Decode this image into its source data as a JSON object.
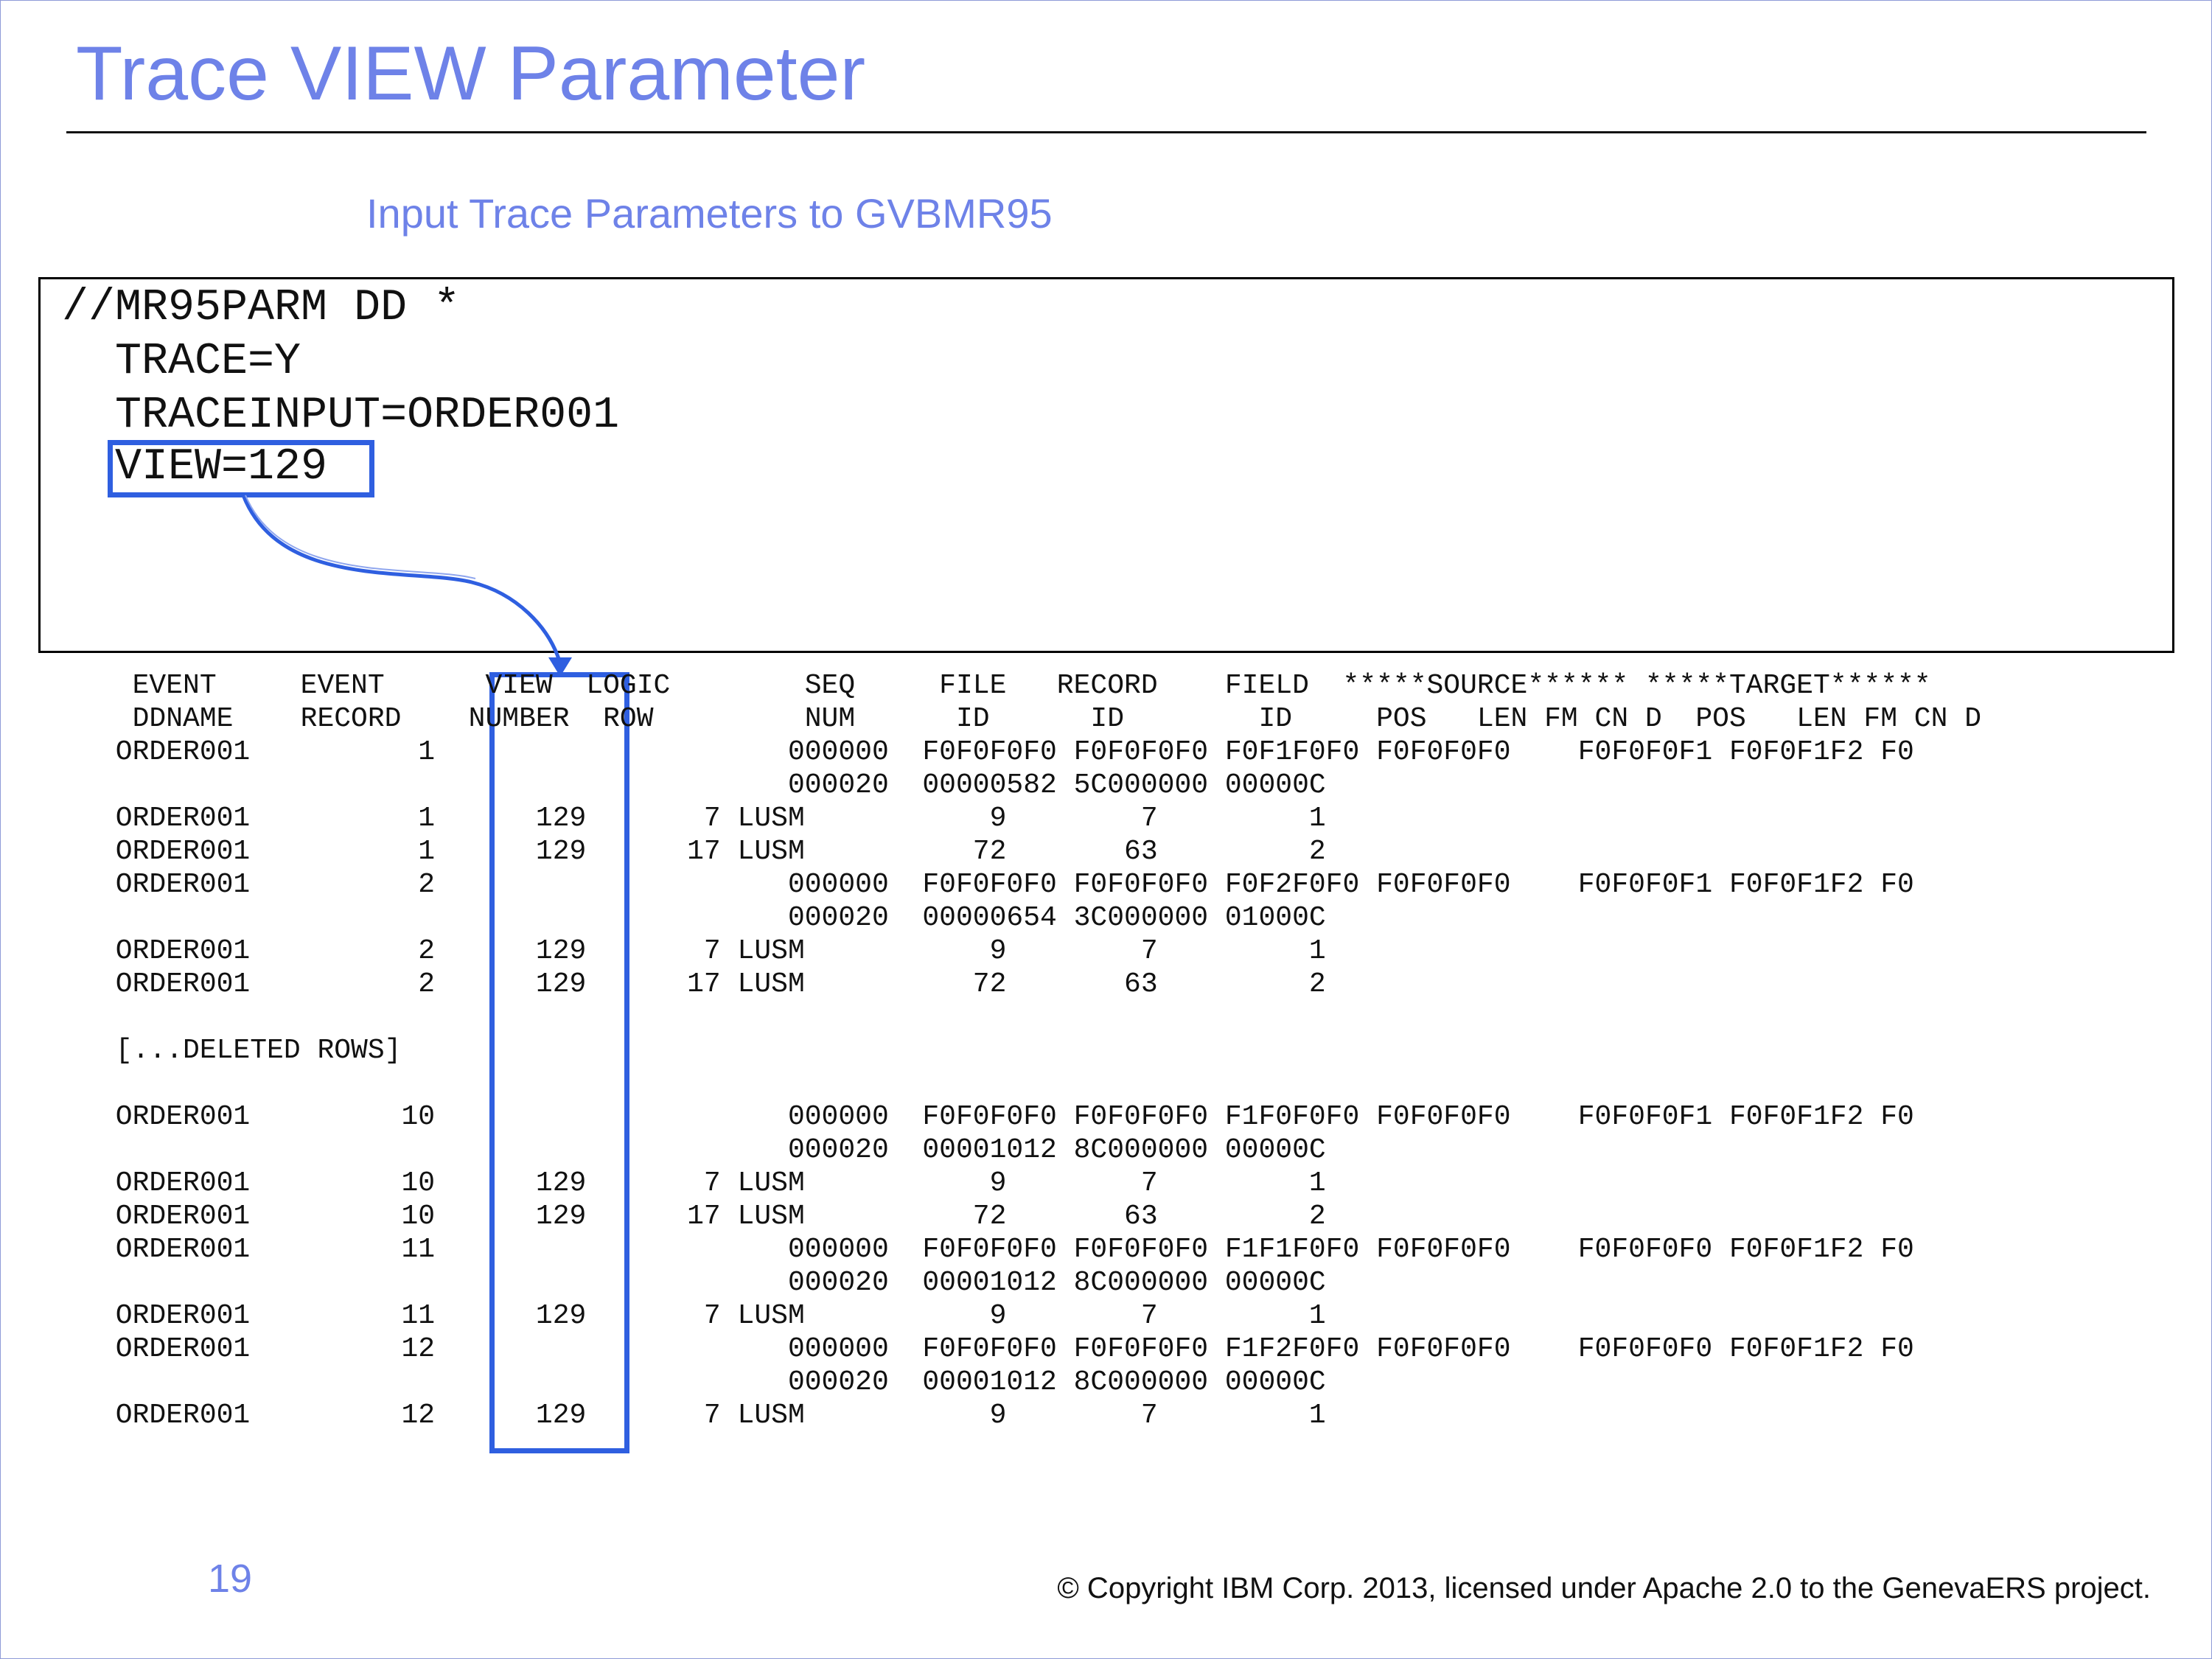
{
  "title": "Trace VIEW Parameter",
  "subtitle": "Input Trace Parameters to GVBMR95",
  "parm_lines": [
    "//MR95PARM DD *",
    "  TRACE=Y",
    "  TRACEINPUT=ORDER001",
    "  VIEW=129"
  ],
  "trace_lines": [
    "  EVENT     EVENT      VIEW  LOGIC        SEQ     FILE   RECORD    FIELD  *****SOURCE****** *****TARGET******",
    "  DDNAME    RECORD    NUMBER  ROW         NUM      ID      ID        ID     POS   LEN FM CN D  POS   LEN FM CN D",
    " ORDER001          1                     000000  F0F0F0F0 F0F0F0F0 F0F1F0F0 F0F0F0F0    F0F0F0F1 F0F0F1F2 F0",
    "                                         000020  00000582 5C000000 00000C",
    " ORDER001          1      129       7 LUSM           9        7         1",
    " ORDER001          1      129      17 LUSM          72       63         2",
    " ORDER001          2                     000000  F0F0F0F0 F0F0F0F0 F0F2F0F0 F0F0F0F0    F0F0F0F1 F0F0F1F2 F0",
    "                                         000020  00000654 3C000000 01000C",
    " ORDER001          2      129       7 LUSM           9        7         1",
    " ORDER001          2      129      17 LUSM          72       63         2",
    "",
    " [...DELETED ROWS]",
    "",
    " ORDER001         10                     000000  F0F0F0F0 F0F0F0F0 F1F0F0F0 F0F0F0F0    F0F0F0F1 F0F0F1F2 F0",
    "                                         000020  00001012 8C000000 00000C",
    " ORDER001         10      129       7 LUSM           9        7         1",
    " ORDER001         10      129      17 LUSM          72       63         2",
    " ORDER001         11                     000000  F0F0F0F0 F0F0F0F0 F1F1F0F0 F0F0F0F0    F0F0F0F0 F0F0F1F2 F0",
    "                                         000020  00001012 8C000000 00000C",
    " ORDER001         11      129       7 LUSM           9        7         1",
    " ORDER001         12                     000000  F0F0F0F0 F0F0F0F0 F1F2F0F0 F0F0F0F0    F0F0F0F0 F0F0F1F2 F0",
    "                                         000020  00001012 8C000000 00000C",
    " ORDER001         12      129       7 LUSM           9        7         1"
  ],
  "page_number": "19",
  "copyright": "© Copyright IBM Corp. 2013, licensed under Apache 2.0 to the GenevaERS project.",
  "colors": {
    "accent": "#6e82e8",
    "highlight": "#2f5fe0"
  }
}
